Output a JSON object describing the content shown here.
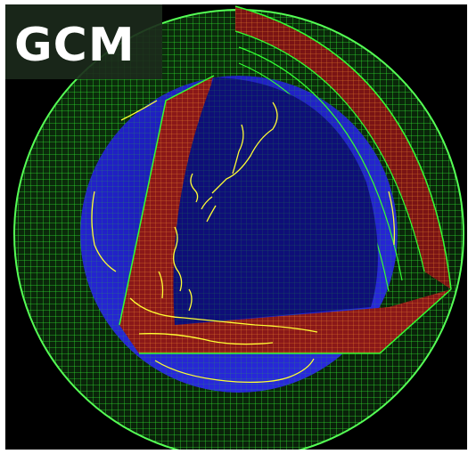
{
  "title": "GCM",
  "colors": {
    "background": "#000000",
    "atmosphere_grid": "#33ff33",
    "ocean_surface": "#1a1ad0",
    "section_fill": "#8a1818",
    "section_grid": "#ff9933",
    "coastline": "#ffff33"
  },
  "icons": [
    "globe-grid-icon"
  ]
}
